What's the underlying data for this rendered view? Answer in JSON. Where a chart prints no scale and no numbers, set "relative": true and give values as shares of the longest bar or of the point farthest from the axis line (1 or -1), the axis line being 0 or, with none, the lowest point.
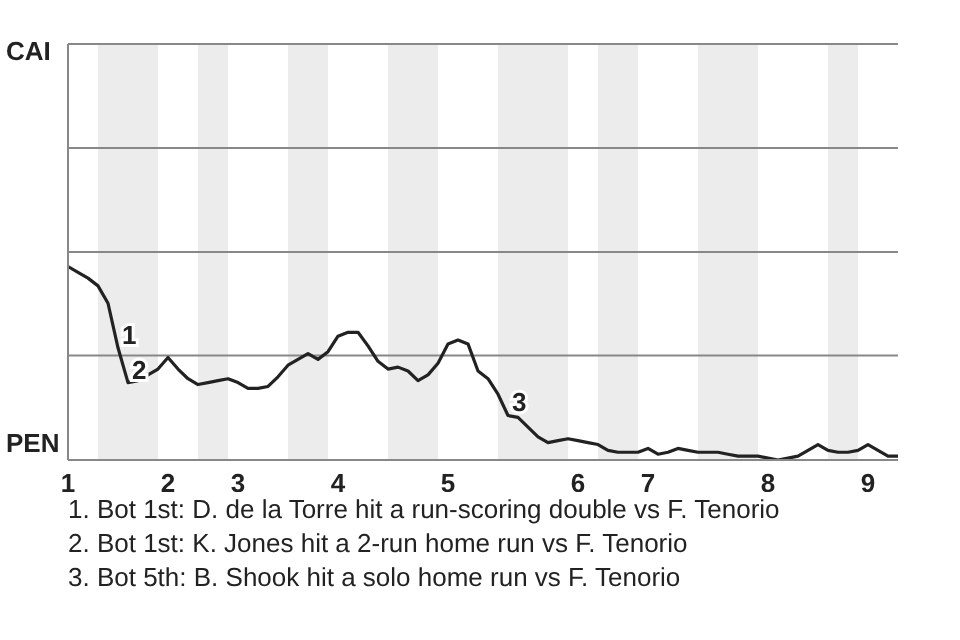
{
  "chart_data": {
    "type": "line",
    "relative": true,
    "categories": [
      "1",
      null,
      null,
      null,
      null,
      null,
      null,
      null,
      null,
      null,
      "2",
      null,
      null,
      null,
      null,
      null,
      null,
      "3",
      null,
      null,
      null,
      null,
      null,
      null,
      null,
      null,
      null,
      "4",
      null,
      null,
      null,
      null,
      null,
      null,
      null,
      null,
      null,
      null,
      "5",
      null,
      null,
      null,
      null,
      null,
      null,
      null,
      null,
      null,
      null,
      null,
      null,
      "6",
      null,
      null,
      null,
      null,
      null,
      null,
      "7",
      null,
      null,
      null,
      null,
      null,
      null,
      null,
      null,
      null,
      null,
      null,
      "8",
      null,
      null,
      null,
      null,
      null,
      null,
      null,
      null,
      null,
      "9",
      null,
      null,
      null
    ],
    "series": [
      {
        "color": "#222222",
        "values": [
          1,
          0.97,
          0.94,
          0.9,
          0.81,
          0.58,
          0.4,
          0.41,
          0.44,
          0.47,
          0.53,
          0.47,
          0.42,
          0.39,
          0.4,
          0.41,
          0.42,
          0.4,
          0.37,
          0.37,
          0.38,
          0.43,
          0.49,
          0.52,
          0.55,
          0.52,
          0.56,
          0.64,
          0.66,
          0.66,
          0.59,
          0.51,
          0.47,
          0.48,
          0.46,
          0.41,
          0.44,
          0.5,
          0.6,
          0.62,
          0.6,
          0.46,
          0.42,
          0.34,
          0.23,
          0.22,
          0.17,
          0.12,
          0.09,
          0.1,
          0.11,
          0.1,
          0.09,
          0.08,
          0.05,
          0.04,
          0.04,
          0.04,
          0.06,
          0.03,
          0.04,
          0.06,
          0.05,
          0.04,
          0.04,
          0.04,
          0.03,
          0.02,
          0.02,
          0.02,
          0.01,
          0,
          0.01,
          0.02,
          0.05,
          0.08,
          0.05,
          0.04,
          0.04,
          0.05,
          0.08,
          0.05,
          0.02,
          0.02
        ]
      }
    ],
    "ref_lines": [
      {
        "axis": "y",
        "value": 0.54,
        "color": "#888888"
      }
    ],
    "marker": "none",
    "line_style": "solid",
    "annotations": [
      "CAI",
      "PEN",
      "1",
      "2",
      "3",
      "1. Bot 1st: D. de la Torre hit a run-scoring double vs F. Tenorio",
      "2. Bot 1st: K. Jones hit a 2-run home run vs F. Tenorio",
      "3. Bot 5th: B. Shook hit a solo home run vs F. Tenorio"
    ]
  }
}
